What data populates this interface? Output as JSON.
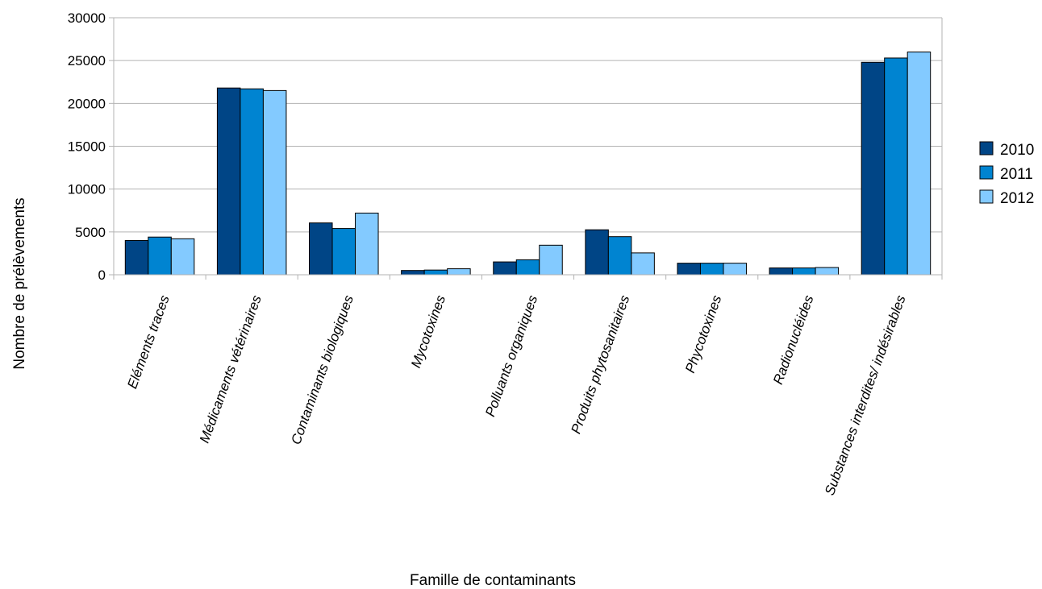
{
  "chart_data": {
    "type": "bar",
    "xlabel": "Famille de contaminants",
    "ylabel": "Nombre de prélèvements",
    "ylim": [
      0,
      30000
    ],
    "yticks": [
      0,
      5000,
      10000,
      15000,
      20000,
      25000,
      30000
    ],
    "grid": true,
    "legend_position": "right",
    "categories": [
      "Eléments traces",
      "Médicaments vétérinaires",
      "Contaminants biologiques",
      "Mycotoxines",
      "Polluants organiques",
      "Produits phytosanitaires",
      "Phycotoxines",
      "Radionucléides",
      "Substances interdites/ indésirables"
    ],
    "series": [
      {
        "name": "2010",
        "color": "#004586",
        "values": [
          4000,
          21800,
          6050,
          500,
          1500,
          5250,
          1350,
          800,
          24800
        ]
      },
      {
        "name": "2011",
        "color": "#0084d1",
        "values": [
          4400,
          21700,
          5400,
          550,
          1750,
          4450,
          1350,
          800,
          25300
        ]
      },
      {
        "name": "2012",
        "color": "#83caff",
        "values": [
          4200,
          21500,
          7200,
          700,
          3450,
          2550,
          1350,
          850,
          26000
        ]
      }
    ]
  }
}
